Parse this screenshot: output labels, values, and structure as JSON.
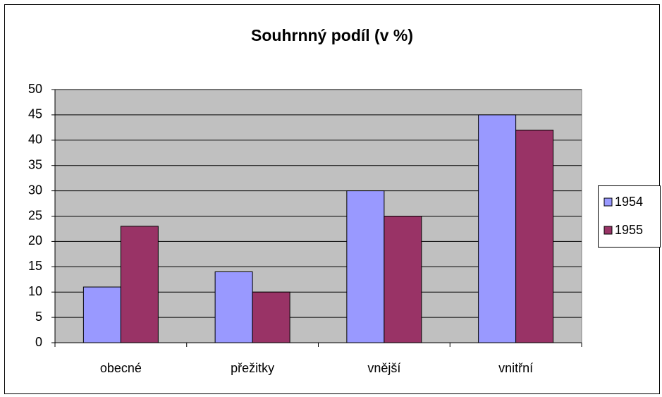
{
  "chart_data": {
    "type": "bar",
    "title": "Souhrnný podíl (v %)",
    "categories": [
      "obecné",
      "přežitky",
      "vnější",
      "vnitřní"
    ],
    "series": [
      {
        "name": "1954",
        "color": "#9999ff",
        "values": [
          11,
          14,
          30,
          45
        ]
      },
      {
        "name": "1955",
        "color": "#993366",
        "values": [
          23,
          10,
          25,
          42
        ]
      }
    ],
    "ylim": [
      0,
      50
    ],
    "yticks": [
      0,
      5,
      10,
      15,
      20,
      25,
      30,
      35,
      40,
      45,
      50
    ],
    "grid": true,
    "legend": "right"
  }
}
